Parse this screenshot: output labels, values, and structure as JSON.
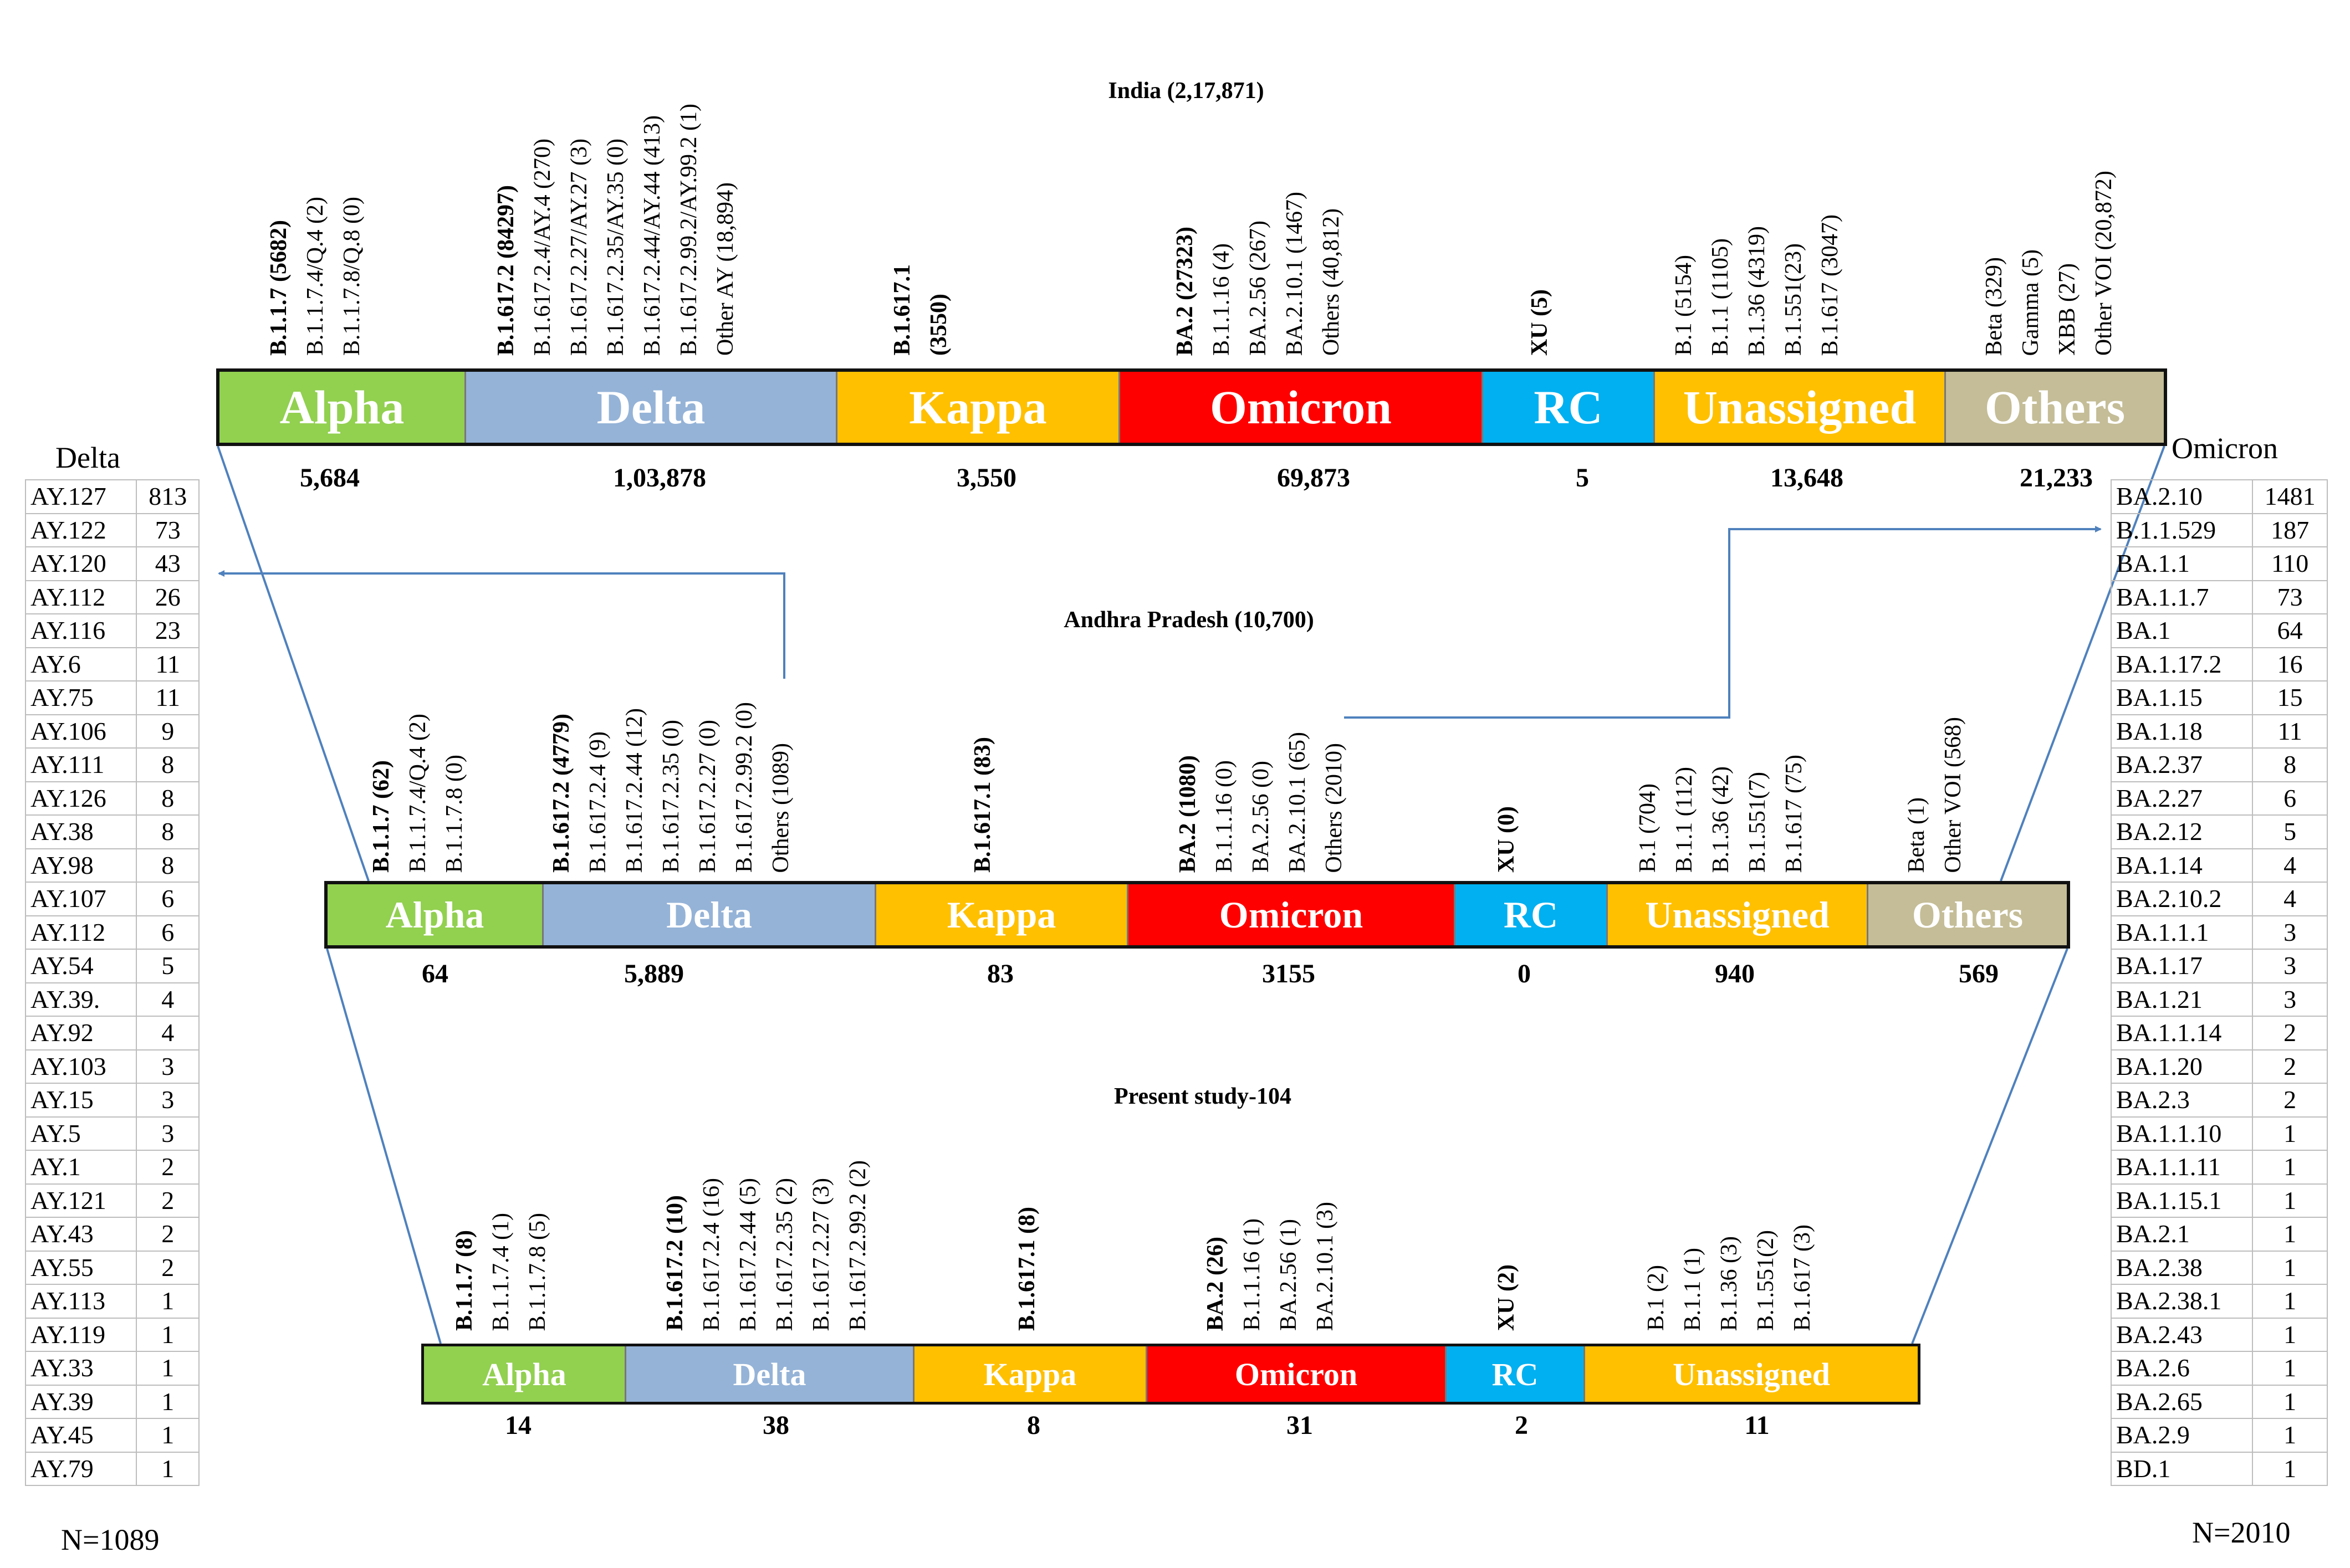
{
  "colors": {
    "alpha": "#92d050",
    "delta": "#95b3d7",
    "kappa": "#ffc000",
    "omicron": "#ff0000",
    "rc": "#00b0f0",
    "unassigned": "#ffc000",
    "others": "#c4bd97",
    "connector": "#4f81bd"
  },
  "levels": [
    {
      "title": "India  (2,17,871)",
      "segments": [
        {
          "name": "Alpha",
          "count": "5,684",
          "color_key": "alpha",
          "labels": [
            {
              "text": "B.1.1.7 (5682)",
              "bold": true
            },
            {
              "text": "B.1.1.7.4/Q.4   (2)"
            },
            {
              "text": "B.1.1.7.8/Q.8   (0)"
            }
          ]
        },
        {
          "name": "Delta",
          "count": "1,03,878",
          "color_key": "delta",
          "labels": [
            {
              "text": "B.1.617.2 (84297)",
              "bold": true
            },
            {
              "text": "B.1.617.2.4/AY.4  (270)"
            },
            {
              "text": "B.1.617.2.27/AY.27  (3)"
            },
            {
              "text": "B.1.617.2.35/AY.35  (0)"
            },
            {
              "text": "B.1.617.2.44/AY.44  (413)"
            },
            {
              "text": "B.1.617.2.99.2/AY.99.2  (1)"
            },
            {
              "text": "Other AY (18,894)"
            }
          ]
        },
        {
          "name": "Kappa",
          "count": "3,550",
          "color_key": "kappa",
          "labels": [
            {
              "text": "B.1.617.1",
              "bold": true
            },
            {
              "text": "(3550)",
              "bold": true
            }
          ]
        },
        {
          "name": "Omicron",
          "count": "69,873",
          "color_key": "omicron",
          "labels": [
            {
              "text": "BA.2 (27323)",
              "bold": true
            },
            {
              "text": "B.1.1.16  (4)"
            },
            {
              "text": "BA.2.56  (267)"
            },
            {
              "text": "BA.2.10.1  (1467)"
            },
            {
              "text": "Others (40,812)"
            }
          ]
        },
        {
          "name": "RC",
          "count": "5",
          "color_key": "rc",
          "labels": [
            {
              "text": "XU (5)",
              "bold": true
            }
          ]
        },
        {
          "name": "Unassigned",
          "count": "13,648",
          "color_key": "unassigned",
          "labels": [
            {
              "text": "B.1 (5154)"
            },
            {
              "text": "B.1.1 (1105)"
            },
            {
              "text": "B.1.36 (4319)"
            },
            {
              "text": "B.1.551(23)"
            },
            {
              "text": "B.1.617  (3047)"
            }
          ]
        },
        {
          "name": "Others",
          "count": "21,233",
          "color_key": "others",
          "labels": [
            {
              "text": "Beta (329)"
            },
            {
              "text": "Gamma  (5)"
            },
            {
              "text": "XBB  (27)"
            },
            {
              "text": "Other VOI  (20,872)"
            }
          ]
        }
      ]
    },
    {
      "title": "Andhra  Pradesh  (10,700)",
      "segments": [
        {
          "name": "Alpha",
          "count": "64",
          "color_key": "alpha",
          "labels": [
            {
              "text": "B.1.1.7 (62)",
              "bold": true
            },
            {
              "text": "B.1.1.7.4/Q.4  (2)"
            },
            {
              "text": "B.1.1.7.8  (0)"
            }
          ]
        },
        {
          "name": "Delta",
          "count": "5,889",
          "color_key": "delta",
          "labels": [
            {
              "text": "B.1.617.2 (4779)",
              "bold": true
            },
            {
              "text": "B.1.617.2.4  (9)"
            },
            {
              "text": "B.1.617.2.44  (12)"
            },
            {
              "text": "B.1.617.2.35  (0)"
            },
            {
              "text": "B.1.617.2.27  (0)"
            },
            {
              "text": "B.1.617.2.99.2  (0)"
            },
            {
              "text": "Others (1089)"
            }
          ]
        },
        {
          "name": "Kappa",
          "count": "83",
          "color_key": "kappa",
          "labels": [
            {
              "text": "B.1.617.1 (83)",
              "bold": true
            }
          ]
        },
        {
          "name": "Omicron",
          "count": "3155",
          "color_key": "omicron",
          "labels": [
            {
              "text": "BA.2 (1080)",
              "bold": true
            },
            {
              "text": "B.1.1.16  (0)"
            },
            {
              "text": "BA.2.56  (0)"
            },
            {
              "text": "BA.2.10.1  (65)"
            },
            {
              "text": "Others (2010)"
            }
          ]
        },
        {
          "name": "RC",
          "count": "0",
          "color_key": "rc",
          "labels": [
            {
              "text": "XU (0)",
              "bold": true
            }
          ]
        },
        {
          "name": "Unassigned",
          "count": "940",
          "color_key": "unassigned",
          "labels": [
            {
              "text": "B.1  (704)"
            },
            {
              "text": "B.1.1  (112)"
            },
            {
              "text": "B.1.36  (42)"
            },
            {
              "text": "B.1.551(7)"
            },
            {
              "text": "B.1.617  (75)"
            }
          ]
        },
        {
          "name": "Others",
          "count": "569",
          "color_key": "others",
          "labels": [
            {
              "text": "Beta (1)"
            },
            {
              "text": "Other VOI  (568)"
            }
          ]
        }
      ]
    },
    {
      "title": "Present study-104",
      "segments": [
        {
          "name": "Alpha",
          "count": "14",
          "color_key": "alpha",
          "labels": [
            {
              "text": "B.1.1.7 (8)",
              "bold": true
            },
            {
              "text": "B.1.1.7.4  (1)"
            },
            {
              "text": "B.1.1.7.8  (5)"
            }
          ]
        },
        {
          "name": "Delta",
          "count": "38",
          "color_key": "delta",
          "labels": [
            {
              "text": "B.1.617.2 (10)",
              "bold": true
            },
            {
              "text": "B.1.617.2.4  (16)"
            },
            {
              "text": "B.1.617.2.44  (5)"
            },
            {
              "text": "B.1.617.2.35  (2)"
            },
            {
              "text": "B.1.617.2.27  (3)"
            },
            {
              "text": "B.1.617.2.99.2  (2)"
            }
          ]
        },
        {
          "name": "Kappa",
          "count": "8",
          "color_key": "kappa",
          "labels": [
            {
              "text": "B.1.617.1 (8)",
              "bold": true
            }
          ]
        },
        {
          "name": "Omicron",
          "count": "31",
          "color_key": "omicron",
          "labels": [
            {
              "text": "BA.2 (26)",
              "bold": true
            },
            {
              "text": "B.1.1.16  (1)"
            },
            {
              "text": "BA.2.56  (1)"
            },
            {
              "text": "BA.2.10.1  (3)"
            }
          ]
        },
        {
          "name": "RC",
          "count": "2",
          "color_key": "rc",
          "labels": [
            {
              "text": "XU (2)",
              "bold": true
            }
          ]
        },
        {
          "name": "Unassigned",
          "count": "11",
          "color_key": "unassigned",
          "labels": [
            {
              "text": "B.1  (2)"
            },
            {
              "text": "B.1.1  (1)"
            },
            {
              "text": "B.1.36  (3)"
            },
            {
              "text": "B.1.551(2)"
            },
            {
              "text": "B.1.617  (3)"
            }
          ]
        }
      ]
    }
  ],
  "delta_table": {
    "title": "Delta",
    "footer": "N=1089",
    "rows": [
      [
        "AY.127",
        "813"
      ],
      [
        "AY.122",
        "73"
      ],
      [
        "AY.120",
        "43"
      ],
      [
        "AY.112",
        "26"
      ],
      [
        "AY.116",
        "23"
      ],
      [
        "AY.6",
        "11"
      ],
      [
        "AY.75",
        "11"
      ],
      [
        "AY.106",
        "9"
      ],
      [
        "AY.111",
        "8"
      ],
      [
        "AY.126",
        "8"
      ],
      [
        "AY.38",
        "8"
      ],
      [
        "AY.98",
        "8"
      ],
      [
        "AY.107",
        "6"
      ],
      [
        "AY.112",
        "6"
      ],
      [
        "AY.54",
        "5"
      ],
      [
        "AY.39.",
        "4"
      ],
      [
        "AY.92",
        "4"
      ],
      [
        "AY.103",
        "3"
      ],
      [
        "AY.15",
        "3"
      ],
      [
        "AY.5",
        "3"
      ],
      [
        "AY.1",
        "2"
      ],
      [
        "AY.121",
        "2"
      ],
      [
        "AY.43",
        "2"
      ],
      [
        "AY.55",
        "2"
      ],
      [
        "AY.113",
        "1"
      ],
      [
        "AY.119",
        "1"
      ],
      [
        "AY.33",
        "1"
      ],
      [
        "AY.39",
        "1"
      ],
      [
        "AY.45",
        "1"
      ],
      [
        "AY.79",
        "1"
      ]
    ]
  },
  "omicron_table": {
    "title": "Omicron",
    "footer": "N=2010",
    "rows": [
      [
        "BA.2.10",
        "1481"
      ],
      [
        "B.1.1.529",
        "187"
      ],
      [
        "BA.1.1",
        "110"
      ],
      [
        "BA.1.1.7",
        "73"
      ],
      [
        "BA.1",
        "64"
      ],
      [
        "BA.1.17.2",
        "16"
      ],
      [
        "BA.1.15",
        "15"
      ],
      [
        "BA.1.18",
        "11"
      ],
      [
        "BA.2.37",
        "8"
      ],
      [
        "BA.2.27",
        "6"
      ],
      [
        "BA.2.12",
        "5"
      ],
      [
        "BA.1.14",
        "4"
      ],
      [
        "BA.2.10.2",
        "4"
      ],
      [
        "BA.1.1.1",
        "3"
      ],
      [
        "BA.1.17",
        "3"
      ],
      [
        "BA.1.21",
        "3"
      ],
      [
        "BA.1.1.14",
        "2"
      ],
      [
        "BA.1.20",
        "2"
      ],
      [
        "BA.2.3",
        "2"
      ],
      [
        "BA.1.1.10",
        "1"
      ],
      [
        "BA.1.1.11",
        "1"
      ],
      [
        "BA.1.15.1",
        "1"
      ],
      [
        "BA.2.1",
        "1"
      ],
      [
        "BA.2.38",
        "1"
      ],
      [
        "BA.2.38.1",
        "1"
      ],
      [
        "BA.2.43",
        "1"
      ],
      [
        "BA.2.6",
        "1"
      ],
      [
        "BA.2.65",
        "1"
      ],
      [
        "BA.2.9",
        "1"
      ],
      [
        "BD.1",
        "1"
      ]
    ]
  }
}
